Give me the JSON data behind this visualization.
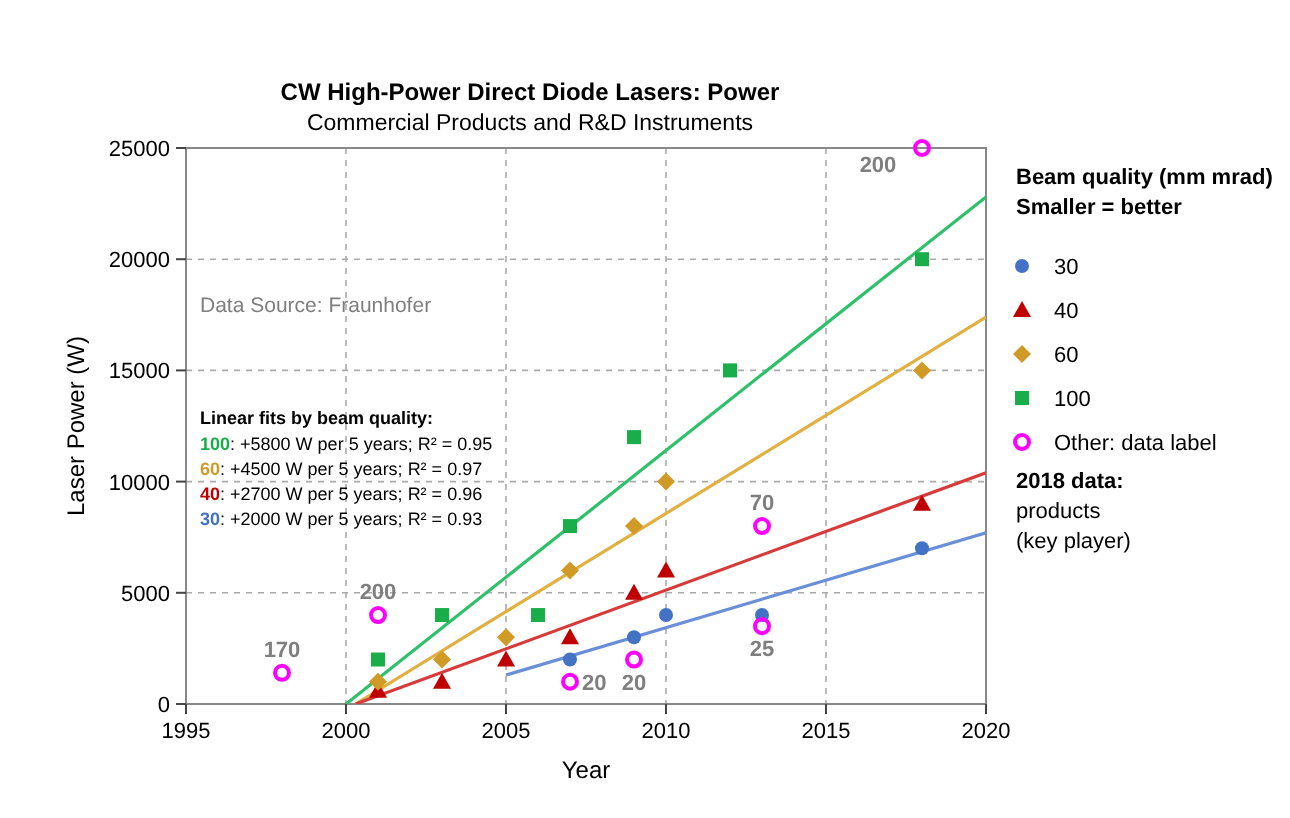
{
  "chart_data": {
    "type": "scatter",
    "title": "CW High-Power Direct Diode Lasers: Power",
    "subtitle": "Commercial Products and R&D Instruments",
    "xlabel": "Year",
    "ylabel": "Laser Power (W)",
    "legend_title": "Beam quality (mm mrad)\nSmaller = better",
    "xlim": [
      1995,
      2020
    ],
    "xticks": [
      1995,
      2000,
      2005,
      2010,
      2015,
      2020
    ],
    "ylim": [
      0,
      25000
    ],
    "yticks": [
      0,
      5000,
      10000,
      15000,
      20000,
      25000
    ],
    "grid": true,
    "legend": "right",
    "series": [
      {
        "name": "30",
        "color": "#4472c4",
        "marker": "circle",
        "x": [
          2007,
          2009,
          2010,
          2013,
          2018
        ],
        "values": [
          2000,
          3000,
          4000,
          4000,
          7000
        ]
      },
      {
        "name": "40",
        "color": "#c00000",
        "marker": "triangle",
        "x": [
          2001,
          2003,
          2005,
          2007,
          2009,
          2010,
          2018
        ],
        "values": [
          600,
          1000,
          2000,
          3000,
          5000,
          6000,
          9000
        ]
      },
      {
        "name": "60",
        "color": "#d09a27",
        "marker": "diamond",
        "x": [
          2001,
          2003,
          2005,
          2007,
          2009,
          2010,
          2018
        ],
        "values": [
          1000,
          2000,
          3000,
          6000,
          8000,
          10000,
          15000
        ]
      },
      {
        "name": "100",
        "color": "#1aae4a",
        "marker": "square",
        "x": [
          2001,
          2003,
          2006,
          2007,
          2009,
          2012,
          2018
        ],
        "values": [
          2000,
          4000,
          4000,
          8000,
          12000,
          15000,
          20000
        ]
      },
      {
        "name": "Other: data label",
        "color": "#ff00ff",
        "marker": "circle-open",
        "x": [
          1998,
          2001,
          2007,
          2009,
          2013,
          2013,
          2018
        ],
        "values": [
          1400,
          4000,
          1000,
          2000,
          3500,
          8000,
          25000
        ]
      },
      {
        "type": "line",
        "color": "#2ec06a",
        "x": [
          2000,
          2020
        ],
        "values": [
          0,
          22800
        ]
      },
      {
        "type": "line",
        "color": "#e0b040",
        "x": [
          2000.3,
          2020
        ],
        "values": [
          0,
          17400
        ]
      },
      {
        "type": "line",
        "color": "#d83a3a",
        "x": [
          2000.3,
          2020
        ],
        "values": [
          0,
          10400
        ]
      },
      {
        "type": "line",
        "color": "#6a8fd8",
        "x": [
          2005,
          2020
        ],
        "values": [
          1300,
          7700
        ]
      }
    ],
    "annotations": [
      "Data Source: Fraunhofer",
      "Linear fits by beam quality:",
      "100: +5800 W per 5 years; R² = 0.95",
      "60: +4500 W per 5 years; R² = 0.97",
      "40: +2700 W per 5 years; R² = 0.96",
      "30: +2000 W per 5 years; R² = 0.93",
      "2018 data:\nproducts\n(key player)",
      {
        "text": "170",
        "x": 1998,
        "y": 1400
      },
      {
        "text": "200",
        "x": 2001,
        "y": 4000
      },
      {
        "text": "20",
        "x": 2007,
        "y": 1000
      },
      {
        "text": "20",
        "x": 2009,
        "y": 2000
      },
      {
        "text": "25",
        "x": 2013,
        "y": 3500
      },
      {
        "text": "70",
        "x": 2013,
        "y": 8000
      },
      {
        "text": "200",
        "x": 2018,
        "y": 25000
      }
    ]
  }
}
